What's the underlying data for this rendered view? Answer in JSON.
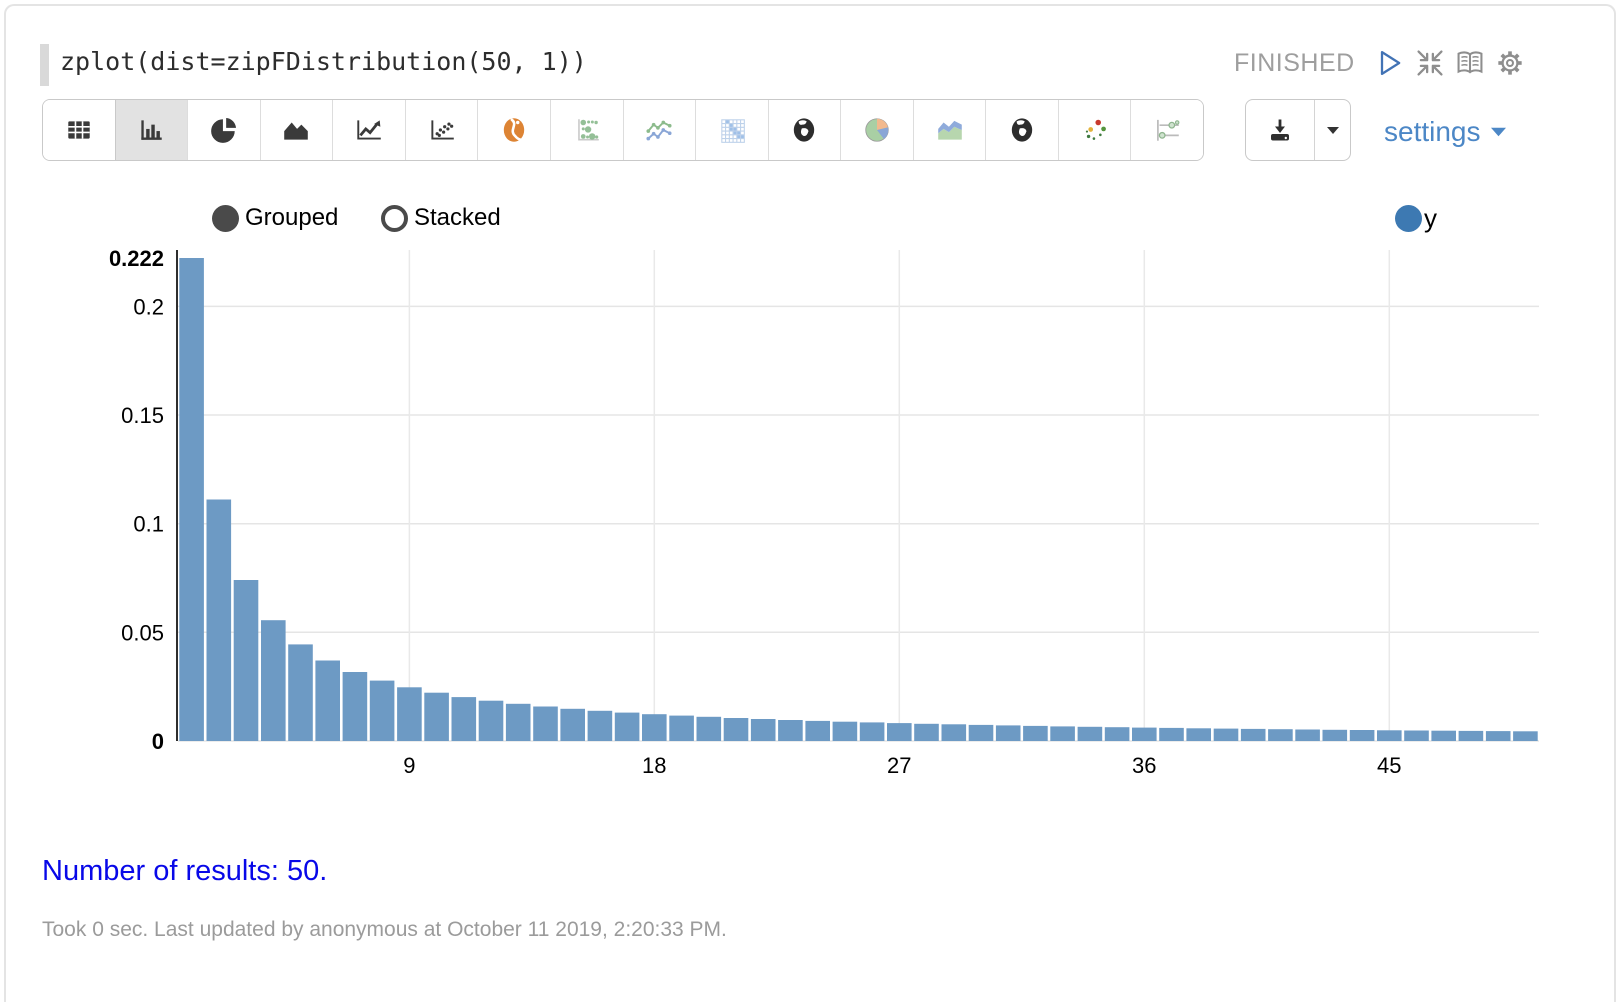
{
  "paragraph": {
    "code": "zplot(dist=zipFDistribution(50, 1))",
    "status": "FINISHED"
  },
  "controls": {
    "icons": [
      "play-icon",
      "collapse-icon",
      "book-icon",
      "gear-icon"
    ]
  },
  "toolbar": {
    "chart_types": [
      "table-icon",
      "bar-chart-icon",
      "pie-chart-icon",
      "area-chart-icon",
      "line-chart-icon",
      "scatter-plot-icon",
      "globe-orange-icon",
      "bubble-grid-icon",
      "multi-line-chart-icon",
      "heatmap-icon",
      "globe-dark-icon",
      "pie-pastel-icon",
      "area-pastel-icon",
      "globe-dark-icon-2",
      "scatter-colored-icon",
      "sliders-icon"
    ],
    "selected": "bar-chart-icon",
    "download_icon": "download-icon",
    "settings_label": "settings"
  },
  "chart_controls": {
    "grouped_label": "Grouped",
    "stacked_label": "Stacked",
    "selected_mode": "Grouped"
  },
  "legend": {
    "series_label": "y"
  },
  "chart_data": {
    "type": "bar",
    "title": "",
    "xlabel": "",
    "ylabel": "",
    "grid": true,
    "legend_position": "top-right",
    "categories": [
      1,
      2,
      3,
      4,
      5,
      6,
      7,
      8,
      9,
      10,
      11,
      12,
      13,
      14,
      15,
      16,
      17,
      18,
      19,
      20,
      21,
      22,
      23,
      24,
      25,
      26,
      27,
      28,
      29,
      30,
      31,
      32,
      33,
      34,
      35,
      36,
      37,
      38,
      39,
      40,
      41,
      42,
      43,
      44,
      45,
      46,
      47,
      48,
      49,
      50
    ],
    "series": [
      {
        "name": "y",
        "values": [
          0.2222615,
          0.1111307,
          0.0740872,
          0.0555654,
          0.0444523,
          0.0370436,
          0.0317516,
          0.0277827,
          0.0246957,
          0.0222261,
          0.0202056,
          0.0185218,
          0.017097,
          0.0158758,
          0.0148174,
          0.0138913,
          0.0130742,
          0.0123479,
          0.011698,
          0.0111131,
          0.0105839,
          0.0101028,
          0.0096635,
          0.0092609,
          0.0088905,
          0.0085485,
          0.0082319,
          0.0079379,
          0.0076642,
          0.0074087,
          0.0071697,
          0.0069457,
          0.0067352,
          0.0065371,
          0.0063503,
          0.0061739,
          0.0060071,
          0.005849,
          0.005699,
          0.0055565,
          0.005421,
          0.0052919,
          0.0051689,
          0.0050514,
          0.0049391,
          0.0048318,
          0.004729,
          0.0046305,
          0.004536,
          0.0044452
        ]
      }
    ],
    "ylim": [
      0,
      0.2222615
    ],
    "y_ticks": [
      {
        "value": 0,
        "label": "0",
        "bold": true,
        "grid": true
      },
      {
        "value": 0.05,
        "label": "0.05",
        "bold": false,
        "grid": true
      },
      {
        "value": 0.1,
        "label": "0.1",
        "bold": false,
        "grid": true
      },
      {
        "value": 0.15,
        "label": "0.15",
        "bold": false,
        "grid": true
      },
      {
        "value": 0.2,
        "label": "0.2",
        "bold": false,
        "grid": true
      },
      {
        "value": 0.2222615,
        "label": "0.222",
        "bold": true,
        "grid": false
      }
    ],
    "x_ticks": [
      {
        "value": 9,
        "label": "9"
      },
      {
        "value": 18,
        "label": "18"
      },
      {
        "value": 27,
        "label": "27"
      },
      {
        "value": 36,
        "label": "36"
      },
      {
        "value": 45,
        "label": "45"
      }
    ]
  },
  "result": {
    "text": "Number of results: 50."
  },
  "footer": {
    "text": "Took 0 sec. Last updated by anonymous at October 11 2019, 2:20:33 PM."
  },
  "colors": {
    "bar": "#6d9ac4",
    "legend_dot": "#3d79b2",
    "accent_blue": "#4c87c6",
    "status_gray": "#9e9e9e",
    "result_blue": "#0808e8",
    "gridline": "#e5e5e5"
  }
}
